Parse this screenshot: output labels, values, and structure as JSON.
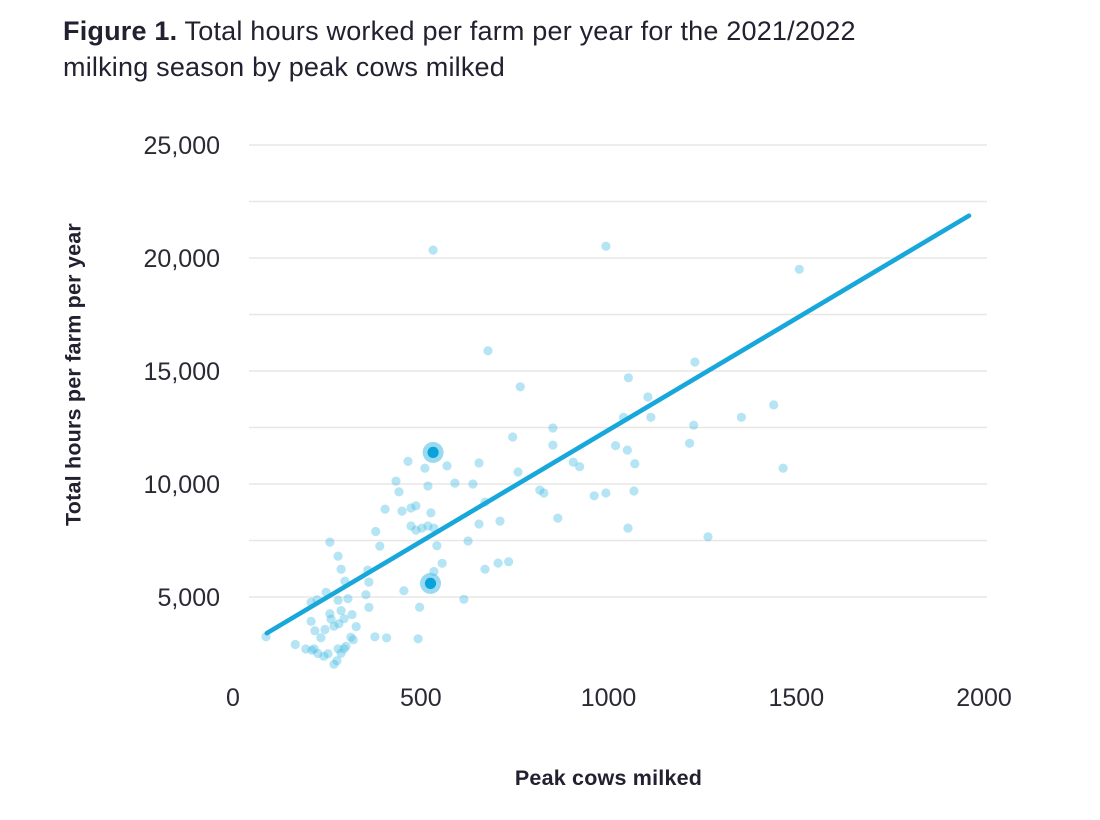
{
  "figure": {
    "label": "Figure 1.",
    "title_line1_rest": " Total hours worked per farm per year for the 2021/2022",
    "title_line2": "milking season by peak cows milked"
  },
  "chart_data": {
    "type": "scatter",
    "title": "Figure 1. Total hours worked per farm per year for the 2021/2022 milking season by peak cows milked",
    "xlabel": "Peak cows milked",
    "ylabel": "Total hours per farm per year",
    "xlim": [
      0,
      2000
    ],
    "ylim": [
      1750,
      25000
    ],
    "grid": "horizontal only",
    "gridline_step": 2500,
    "legend": "none",
    "x_ticks": [
      {
        "value": 0,
        "label": "0"
      },
      {
        "value": 500,
        "label": "500"
      },
      {
        "value": 1000,
        "label": "1000"
      },
      {
        "value": 1500,
        "label": "1500"
      },
      {
        "value": 2000,
        "label": "2000"
      }
    ],
    "y_ticks": [
      {
        "value": 25000,
        "label": "25,000"
      },
      {
        "value": 20000,
        "label": "20,000"
      },
      {
        "value": 15000,
        "label": "15,000"
      },
      {
        "value": 10000,
        "label": "10,000"
      },
      {
        "value": 5000,
        "label": "5,000"
      }
    ],
    "points": [
      [
        88,
        3240
      ],
      [
        166,
        2900
      ],
      [
        194,
        2700
      ],
      [
        208,
        3920
      ],
      [
        208,
        4770
      ],
      [
        210,
        2640
      ],
      [
        216,
        2710
      ],
      [
        218,
        3510
      ],
      [
        224,
        4880
      ],
      [
        226,
        2500
      ],
      [
        234,
        3200
      ],
      [
        242,
        2380
      ],
      [
        245,
        3560
      ],
      [
        248,
        5210
      ],
      [
        253,
        2490
      ],
      [
        258,
        4260
      ],
      [
        258,
        7430
      ],
      [
        261,
        4020
      ],
      [
        269,
        2020
      ],
      [
        269,
        3710
      ],
      [
        277,
        2180
      ],
      [
        280,
        2710
      ],
      [
        280,
        4860
      ],
      [
        280,
        6810
      ],
      [
        282,
        3820
      ],
      [
        288,
        2510
      ],
      [
        288,
        4400
      ],
      [
        288,
        6230
      ],
      [
        296,
        2710
      ],
      [
        296,
        4040
      ],
      [
        298,
        5700
      ],
      [
        301,
        2820
      ],
      [
        306,
        4930
      ],
      [
        314,
        3220
      ],
      [
        317,
        4220
      ],
      [
        320,
        3110
      ],
      [
        328,
        3690
      ],
      [
        354,
        5100
      ],
      [
        359,
        6190
      ],
      [
        362,
        4540
      ],
      [
        362,
        5660
      ],
      [
        378,
        3240
      ],
      [
        380,
        7900
      ],
      [
        391,
        7250
      ],
      [
        405,
        8890
      ],
      [
        409,
        3190
      ],
      [
        434,
        10130
      ],
      [
        442,
        9650
      ],
      [
        450,
        8800
      ],
      [
        455,
        5280
      ],
      [
        466,
        11000
      ],
      [
        474,
        8140
      ],
      [
        474,
        8940
      ],
      [
        487,
        7960
      ],
      [
        487,
        9030
      ],
      [
        493,
        3150
      ],
      [
        497,
        4550
      ],
      [
        503,
        8050
      ],
      [
        511,
        10700
      ],
      [
        519,
        8140
      ],
      [
        519,
        9910
      ],
      [
        527,
        8720
      ],
      [
        533,
        20350
      ],
      [
        535,
        6130
      ],
      [
        535,
        8050
      ],
      [
        543,
        7270
      ],
      [
        557,
        6490
      ],
      [
        570,
        10800
      ],
      [
        591,
        10040
      ],
      [
        615,
        4900
      ],
      [
        626,
        7480
      ],
      [
        639,
        10000
      ],
      [
        655,
        8230
      ],
      [
        655,
        10930
      ],
      [
        671,
        6230
      ],
      [
        671,
        9200
      ],
      [
        679,
        15900
      ],
      [
        706,
        6500
      ],
      [
        711,
        8360
      ],
      [
        734,
        6560
      ],
      [
        745,
        12080
      ],
      [
        759,
        10530
      ],
      [
        765,
        14300
      ],
      [
        817,
        9730
      ],
      [
        828,
        9600
      ],
      [
        852,
        12480
      ],
      [
        852,
        11720
      ],
      [
        865,
        8490
      ],
      [
        906,
        10970
      ],
      [
        923,
        10770
      ],
      [
        962,
        9480
      ],
      [
        993,
        9600
      ],
      [
        993,
        20520
      ],
      [
        1019,
        11700
      ],
      [
        1040,
        12950
      ],
      [
        1050,
        11500
      ],
      [
        1052,
        8050
      ],
      [
        1053,
        14700
      ],
      [
        1068,
        9690
      ],
      [
        1070,
        10900
      ],
      [
        1105,
        13850
      ],
      [
        1113,
        12950
      ],
      [
        1216,
        11800
      ],
      [
        1227,
        12600
      ],
      [
        1230,
        15400
      ],
      [
        1265,
        7660
      ],
      [
        1354,
        12950
      ],
      [
        1440,
        13500
      ],
      [
        1465,
        10700
      ],
      [
        1508,
        19500
      ]
    ],
    "highlighted_points": [
      [
        533,
        11400
      ],
      [
        526,
        5600
      ]
    ],
    "trend_line": {
      "x1": 90,
      "y1": 3400,
      "x2": 1960,
      "y2": 21870
    },
    "colors": {
      "point": "#45bce4",
      "point_opacity": 0.4,
      "halo_opacity": 0.55,
      "highlight": "#09a2da",
      "trend": "#18a7db",
      "gridline": "#e9e7e5",
      "title_text": "#232030",
      "tick_text": "#2b2933"
    }
  }
}
